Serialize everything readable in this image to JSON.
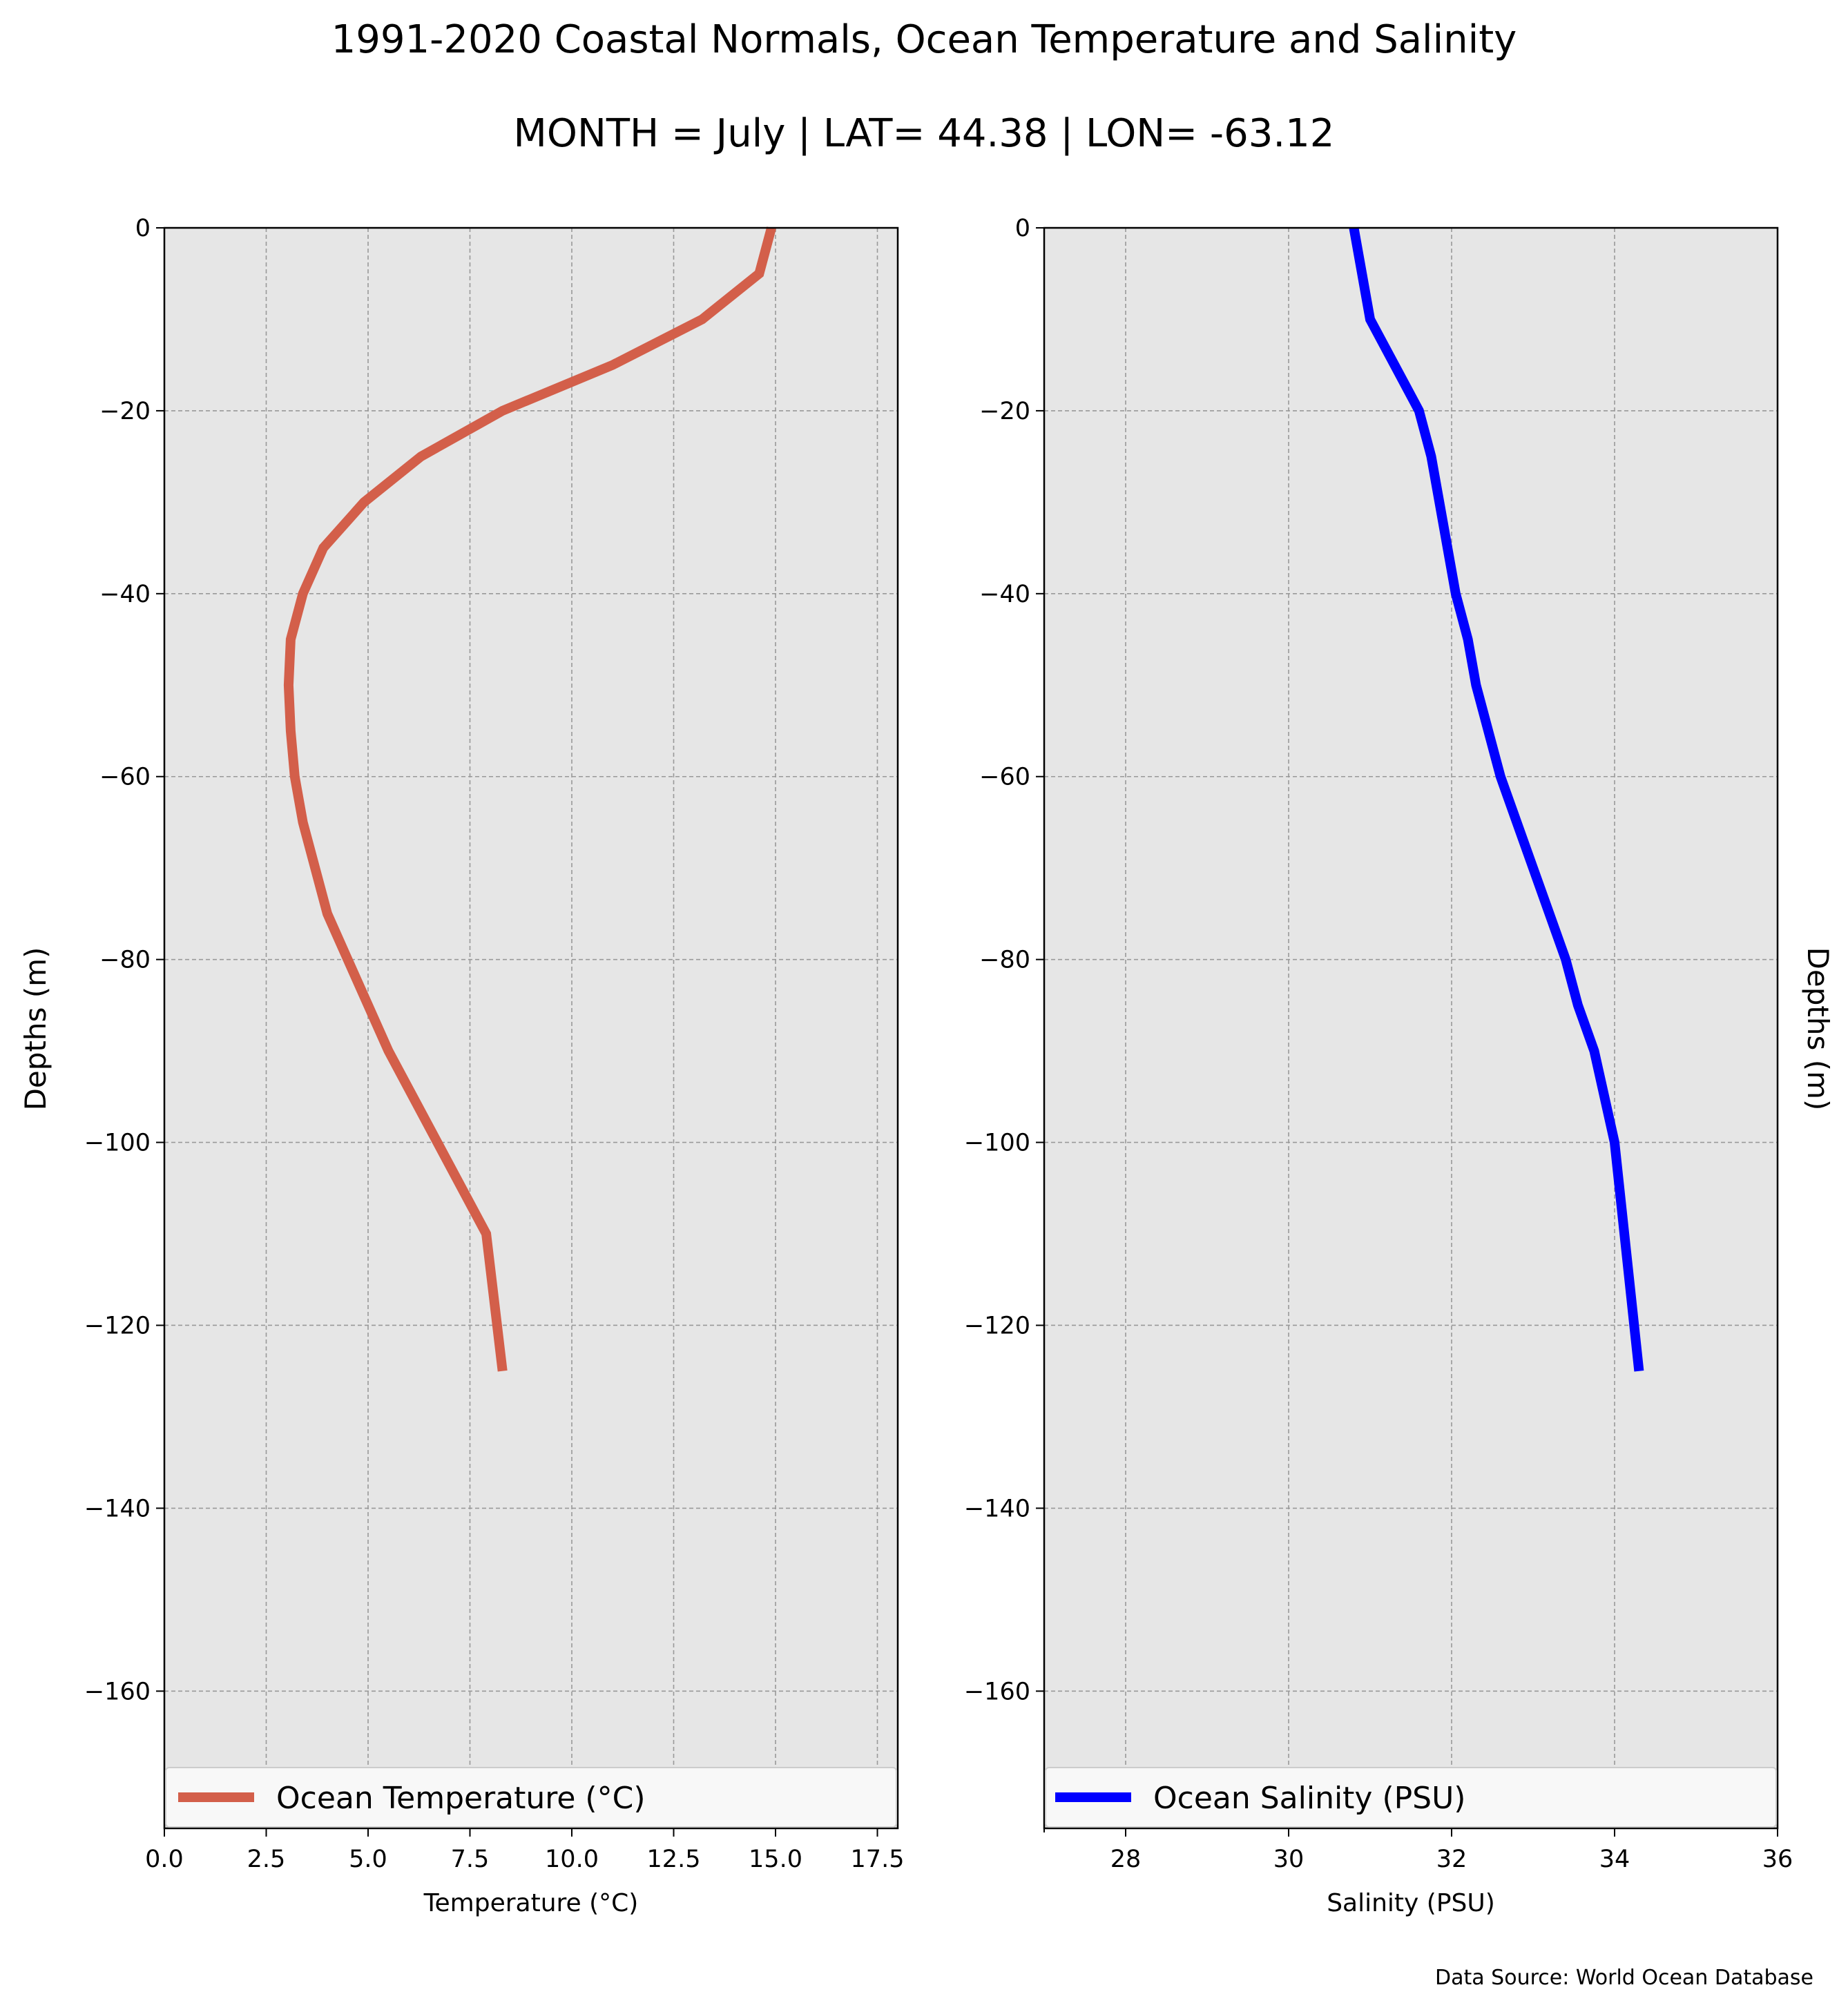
{
  "title": "1991-2020 Coastal Normals, Ocean Temperature and Salinity",
  "subtitle": "MONTH = July | LAT= 44.38 | LON= -63.12",
  "source": "Data Source: World Ocean Database",
  "chart_data": [
    {
      "type": "line",
      "xlabel": "Temperature ($^\\circ$C)",
      "xlabel_display": "Temperature (°C)",
      "ylabel": "Depths (m)",
      "xlim": [
        0,
        18
      ],
      "ylim": [
        -175,
        0
      ],
      "xticks": [
        0,
        2.5,
        5,
        7.5,
        10,
        12.5,
        15,
        17.5
      ],
      "xtick_labels": [
        "0.0",
        "2.5",
        "5.0",
        "7.5",
        "10.0",
        "12.5",
        "15.0",
        "17.5"
      ],
      "yticks": [
        0,
        -20,
        -40,
        -60,
        -80,
        -100,
        -120,
        -140,
        -160
      ],
      "ytick_labels": [
        "0",
        "−20",
        "−40",
        "−60",
        "−80",
        "−100",
        "−120",
        "−140",
        "−160"
      ],
      "grid": true,
      "legend_position": "lower center",
      "series": [
        {
          "name": "Ocean Temperature (°C)",
          "color": "#d35f4a",
          "x": [
            14.9,
            14.6,
            13.2,
            11.0,
            8.3,
            6.3,
            4.9,
            3.9,
            3.4,
            3.1,
            3.05,
            3.1,
            3.2,
            3.4,
            3.7,
            4.0,
            4.5,
            5.0,
            5.5,
            6.1,
            6.7,
            7.3,
            7.9,
            8.3
          ],
          "y": [
            0,
            -5,
            -10,
            -15,
            -20,
            -25,
            -30,
            -35,
            -40,
            -45,
            -50,
            -55,
            -60,
            -65,
            -70,
            -75,
            -80,
            -85,
            -90,
            -95,
            -100,
            -105,
            -110,
            -125
          ]
        }
      ]
    },
    {
      "type": "line",
      "xlabel": "Salinity (PSU)",
      "ylabel": "Depths (m)",
      "xlim": [
        27,
        36
      ],
      "ylim": [
        -175,
        0
      ],
      "xticks": [
        28,
        30,
        32,
        34,
        36
      ],
      "xtick_labels": [
        "28",
        "30",
        "32",
        "34",
        "36"
      ],
      "yticks": [
        0,
        -20,
        -40,
        -60,
        -80,
        -100,
        -120,
        -140,
        -160
      ],
      "ytick_labels": [
        "0",
        "−20",
        "−40",
        "−60",
        "−80",
        "−100",
        "−120",
        "−140",
        "−160"
      ],
      "grid": true,
      "legend_position": "lower center",
      "series": [
        {
          "name": "Ocean Salinity (PSU)",
          "color": "#0000ff",
          "x": [
            30.8,
            30.9,
            31.0,
            31.3,
            31.6,
            31.75,
            31.85,
            31.95,
            32.05,
            32.2,
            32.3,
            32.45,
            32.6,
            32.8,
            33.0,
            33.2,
            33.4,
            33.55,
            33.75,
            34.0,
            34.3
          ],
          "y": [
            0,
            -5,
            -10,
            -15,
            -20,
            -25,
            -30,
            -35,
            -40,
            -45,
            -50,
            -55,
            -60,
            -65,
            -70,
            -75,
            -80,
            -85,
            -90,
            -100,
            -125
          ]
        }
      ]
    }
  ]
}
